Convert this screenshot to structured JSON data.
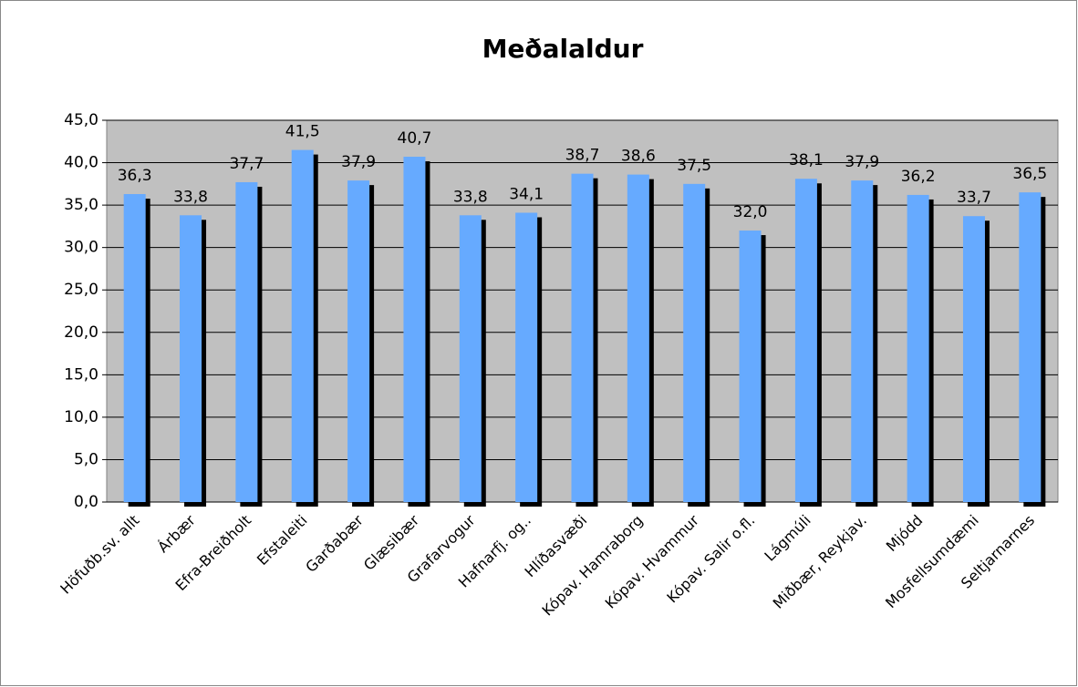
{
  "chart_data": {
    "type": "bar",
    "title": "Meðalaldur",
    "categories": [
      "Höfuðb.sv. allt",
      "Árbær",
      "Efra-Breiðholt",
      "Efstaleiti",
      "Garðabær",
      "Glæsibær",
      "Grafarvogur",
      "Hafnarfj. og..",
      "Hlíðasvæði",
      "Kópav. Hamraborg",
      "Kópav. Hvammur",
      "Kópav. Salir o.fl.",
      "Lágmúli",
      "Miðbær, Reykjav.",
      "Mjódd",
      "Mosfellsumdæmi",
      "Seltjarnarnes"
    ],
    "values": [
      36.3,
      33.8,
      37.7,
      41.5,
      37.9,
      40.7,
      33.8,
      34.1,
      38.7,
      38.6,
      37.5,
      32.0,
      38.1,
      37.9,
      36.2,
      33.7,
      36.5
    ],
    "value_labels": [
      "36,3",
      "33,8",
      "37,7",
      "41,5",
      "37,9",
      "40,7",
      "33,8",
      "34,1",
      "38,7",
      "38,6",
      "37,5",
      "32,0",
      "38,1",
      "37,9",
      "36,2",
      "33,7",
      "36,5"
    ],
    "color": "#66aaff",
    "ylim": [
      0,
      45
    ],
    "yticks": [
      {
        "value": 0,
        "label": "0,0"
      },
      {
        "value": 5,
        "label": "5,0"
      },
      {
        "value": 10,
        "label": "10,0"
      },
      {
        "value": 15,
        "label": "15,0"
      },
      {
        "value": 20,
        "label": "20,0"
      },
      {
        "value": 25,
        "label": "25,0"
      },
      {
        "value": 30,
        "label": "30,0"
      },
      {
        "value": 35,
        "label": "35,0"
      },
      {
        "value": 40,
        "label": "40,0"
      },
      {
        "value": 45,
        "label": "45,0"
      }
    ],
    "grid": true
  }
}
